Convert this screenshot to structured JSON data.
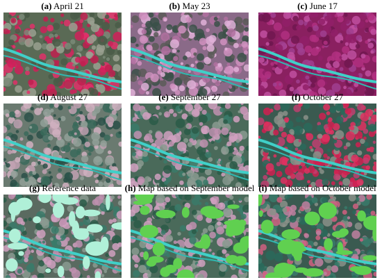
{
  "panels": [
    {
      "letter": "(a)",
      "text": " April 21"
    },
    {
      "letter": "(b)",
      "text": " May 23"
    },
    {
      "letter": "(c)",
      "text": " June 17"
    },
    {
      "letter": "(d)",
      "text": " August 27"
    },
    {
      "letter": "(e)",
      "text": " September 27"
    },
    {
      "letter": "(f)",
      "text": " October 27"
    },
    {
      "letter": "(g)",
      "text": " Reference data"
    },
    {
      "letter": "(h)",
      "text": " Map based on September model"
    },
    {
      "letter": "(i)",
      "text": " Map based on October model"
    }
  ]
}
